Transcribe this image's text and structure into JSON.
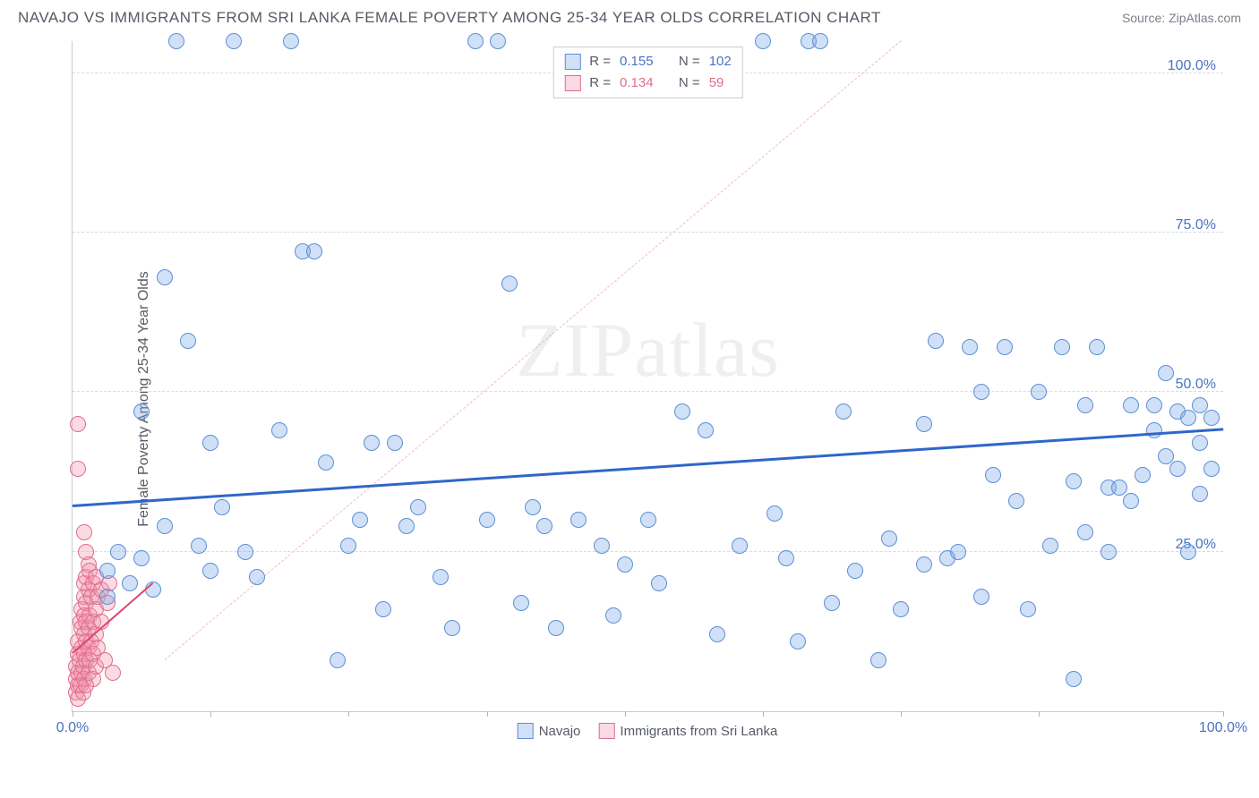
{
  "header": {
    "title": "NAVAJO VS IMMIGRANTS FROM SRI LANKA FEMALE POVERTY AMONG 25-34 YEAR OLDS CORRELATION CHART",
    "source_prefix": "Source: ",
    "source_name": "ZipAtlas.com"
  },
  "chart": {
    "type": "scatter",
    "y_axis_title": "Female Poverty Among 25-34 Year Olds",
    "xlim": [
      0,
      100
    ],
    "ylim": [
      0,
      105
    ],
    "x_ticks": [
      0,
      12,
      24,
      36,
      48,
      60,
      72,
      84,
      100
    ],
    "x_tick_labels": {
      "0": "0.0%",
      "100": "100.0%"
    },
    "y_ticks": [
      25,
      50,
      75,
      100
    ],
    "y_tick_labels": {
      "25": "25.0%",
      "50": "50.0%",
      "75": "75.0%",
      "100": "100.0%"
    },
    "background_color": "#ffffff",
    "grid_color": "#d8dce3",
    "axis_color": "#c8ccd4",
    "tick_label_color": "#4a72c4",
    "watermark": "ZIPatlas",
    "marker_radius": 9,
    "marker_stroke_width": 1.5,
    "series": [
      {
        "key": "navajo",
        "label": "Navajo",
        "fill": "rgba(120,165,230,0.35)",
        "stroke": "#5d8fd6",
        "r_value": "0.155",
        "n_value": "102",
        "trend": {
          "x1": 0,
          "y1": 32,
          "x2": 100,
          "y2": 44,
          "color": "#2f66c9",
          "width": 3,
          "dash": "solid"
        },
        "diag": {
          "x1": 8,
          "y1": 8,
          "x2": 72,
          "y2": 105,
          "color": "#f3b9c7",
          "width": 1,
          "dash": "dashed"
        },
        "points": [
          [
            3,
            22
          ],
          [
            3,
            18
          ],
          [
            4,
            25
          ],
          [
            5,
            20
          ],
          [
            6,
            24
          ],
          [
            6,
            47
          ],
          [
            7,
            19
          ],
          [
            8,
            29
          ],
          [
            8,
            68
          ],
          [
            9,
            105
          ],
          [
            10,
            58
          ],
          [
            11,
            26
          ],
          [
            12,
            22
          ],
          [
            12,
            42
          ],
          [
            13,
            32
          ],
          [
            14,
            105
          ],
          [
            15,
            25
          ],
          [
            16,
            21
          ],
          [
            18,
            44
          ],
          [
            19,
            105
          ],
          [
            20,
            72
          ],
          [
            21,
            72
          ],
          [
            22,
            39
          ],
          [
            23,
            8
          ],
          [
            24,
            26
          ],
          [
            25,
            30
          ],
          [
            26,
            42
          ],
          [
            27,
            16
          ],
          [
            28,
            42
          ],
          [
            29,
            29
          ],
          [
            30,
            32
          ],
          [
            32,
            21
          ],
          [
            33,
            13
          ],
          [
            35,
            105
          ],
          [
            36,
            30
          ],
          [
            37,
            105
          ],
          [
            38,
            67
          ],
          [
            39,
            17
          ],
          [
            40,
            32
          ],
          [
            41,
            29
          ],
          [
            42,
            13
          ],
          [
            44,
            30
          ],
          [
            46,
            26
          ],
          [
            47,
            15
          ],
          [
            48,
            23
          ],
          [
            50,
            30
          ],
          [
            51,
            20
          ],
          [
            53,
            47
          ],
          [
            55,
            44
          ],
          [
            56,
            12
          ],
          [
            58,
            26
          ],
          [
            60,
            105
          ],
          [
            61,
            31
          ],
          [
            62,
            24
          ],
          [
            63,
            11
          ],
          [
            64,
            105
          ],
          [
            65,
            105
          ],
          [
            66,
            17
          ],
          [
            67,
            47
          ],
          [
            68,
            22
          ],
          [
            70,
            8
          ],
          [
            71,
            27
          ],
          [
            72,
            16
          ],
          [
            74,
            45
          ],
          [
            75,
            58
          ],
          [
            76,
            24
          ],
          [
            77,
            25
          ],
          [
            78,
            57
          ],
          [
            79,
            18
          ],
          [
            80,
            37
          ],
          [
            81,
            57
          ],
          [
            82,
            33
          ],
          [
            83,
            16
          ],
          [
            84,
            50
          ],
          [
            85,
            26
          ],
          [
            86,
            57
          ],
          [
            87,
            36
          ],
          [
            88,
            48
          ],
          [
            88,
            28
          ],
          [
            89,
            57
          ],
          [
            90,
            35
          ],
          [
            90,
            25
          ],
          [
            91,
            35
          ],
          [
            92,
            48
          ],
          [
            92,
            33
          ],
          [
            93,
            37
          ],
          [
            94,
            44
          ],
          [
            94,
            48
          ],
          [
            95,
            53
          ],
          [
            95,
            40
          ],
          [
            96,
            38
          ],
          [
            96,
            47
          ],
          [
            97,
            46
          ],
          [
            97,
            25
          ],
          [
            98,
            34
          ],
          [
            98,
            42
          ],
          [
            98,
            48
          ],
          [
            99,
            38
          ],
          [
            99,
            46
          ],
          [
            87,
            5
          ],
          [
            74,
            23
          ],
          [
            79,
            50
          ]
        ]
      },
      {
        "key": "srilanka",
        "label": "Immigrants from Sri Lanka",
        "fill": "rgba(240,150,175,0.35)",
        "stroke": "#e16d8a",
        "r_value": "0.134",
        "n_value": "59",
        "trend": {
          "x1": 0,
          "y1": 9,
          "x2": 7,
          "y2": 20,
          "color": "#d94a72",
          "width": 2.5,
          "dash": "solid"
        },
        "points": [
          [
            0.3,
            3
          ],
          [
            0.3,
            5
          ],
          [
            0.3,
            7
          ],
          [
            0.5,
            2
          ],
          [
            0.5,
            4
          ],
          [
            0.5,
            6
          ],
          [
            0.5,
            9
          ],
          [
            0.5,
            11
          ],
          [
            0.6,
            8
          ],
          [
            0.7,
            4
          ],
          [
            0.7,
            14
          ],
          [
            0.8,
            6
          ],
          [
            0.8,
            10
          ],
          [
            0.8,
            13
          ],
          [
            0.8,
            16
          ],
          [
            0.9,
            3
          ],
          [
            0.9,
            7
          ],
          [
            1.0,
            5
          ],
          [
            1.0,
            9
          ],
          [
            1.0,
            12
          ],
          [
            1.0,
            15
          ],
          [
            1.0,
            18
          ],
          [
            1.0,
            20
          ],
          [
            1.2,
            4
          ],
          [
            1.2,
            8
          ],
          [
            1.2,
            11
          ],
          [
            1.2,
            14
          ],
          [
            1.2,
            17
          ],
          [
            1.2,
            21
          ],
          [
            1.2,
            25
          ],
          [
            1.4,
            6
          ],
          [
            1.4,
            10
          ],
          [
            1.4,
            13
          ],
          [
            1.4,
            19
          ],
          [
            1.4,
            23
          ],
          [
            1.5,
            8
          ],
          [
            1.5,
            15
          ],
          [
            1.5,
            22
          ],
          [
            1.6,
            11
          ],
          [
            1.6,
            18
          ],
          [
            1.8,
            5
          ],
          [
            1.8,
            9
          ],
          [
            1.8,
            14
          ],
          [
            1.8,
            20
          ],
          [
            2.0,
            7
          ],
          [
            2.0,
            12
          ],
          [
            2.0,
            16
          ],
          [
            2.0,
            21
          ],
          [
            2.2,
            10
          ],
          [
            2.2,
            18
          ],
          [
            2.5,
            14
          ],
          [
            2.5,
            19
          ],
          [
            2.8,
            8
          ],
          [
            3.0,
            17
          ],
          [
            3.2,
            20
          ],
          [
            3.5,
            6
          ],
          [
            0.5,
            38
          ],
          [
            0.5,
            45
          ],
          [
            1.0,
            28
          ]
        ]
      }
    ],
    "legend_top": {
      "r_label": "R =",
      "n_label": "N ="
    },
    "legend_bottom_labels": [
      "Navajo",
      "Immigrants from Sri Lanka"
    ]
  }
}
